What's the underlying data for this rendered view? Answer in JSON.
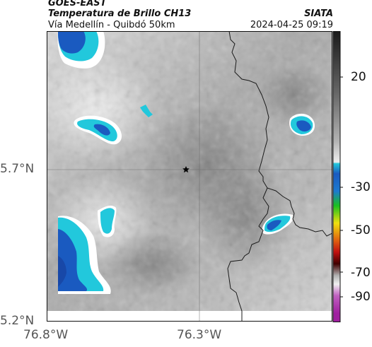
{
  "header": {
    "satellite": "GOES-EAST",
    "product": "Temperatura de Brillo CH13",
    "region": "Vía Medellín - Quibdó 50km",
    "agency": "SIATA",
    "timestamp": "2024-04-25 09:19"
  },
  "map": {
    "marker": "star-marker",
    "latitude_labels": [
      "5.7°N",
      "5.2°N"
    ],
    "longitude_labels": [
      "76.8°W",
      "76.3°W"
    ]
  },
  "colorbar": {
    "tick_labels": [
      "20",
      "-30",
      "-50",
      "-70",
      "-90"
    ],
    "colors": {
      "warm_black": "#222222",
      "warm_grey": "#9a9a9a",
      "cold_white": "#f6f6f6",
      "cyan": "#22c8dc",
      "blue": "#1a5ac0",
      "green": "#19c020",
      "yellow": "#f0e010",
      "red": "#e02010",
      "magenta": "#c040c0"
    }
  }
}
